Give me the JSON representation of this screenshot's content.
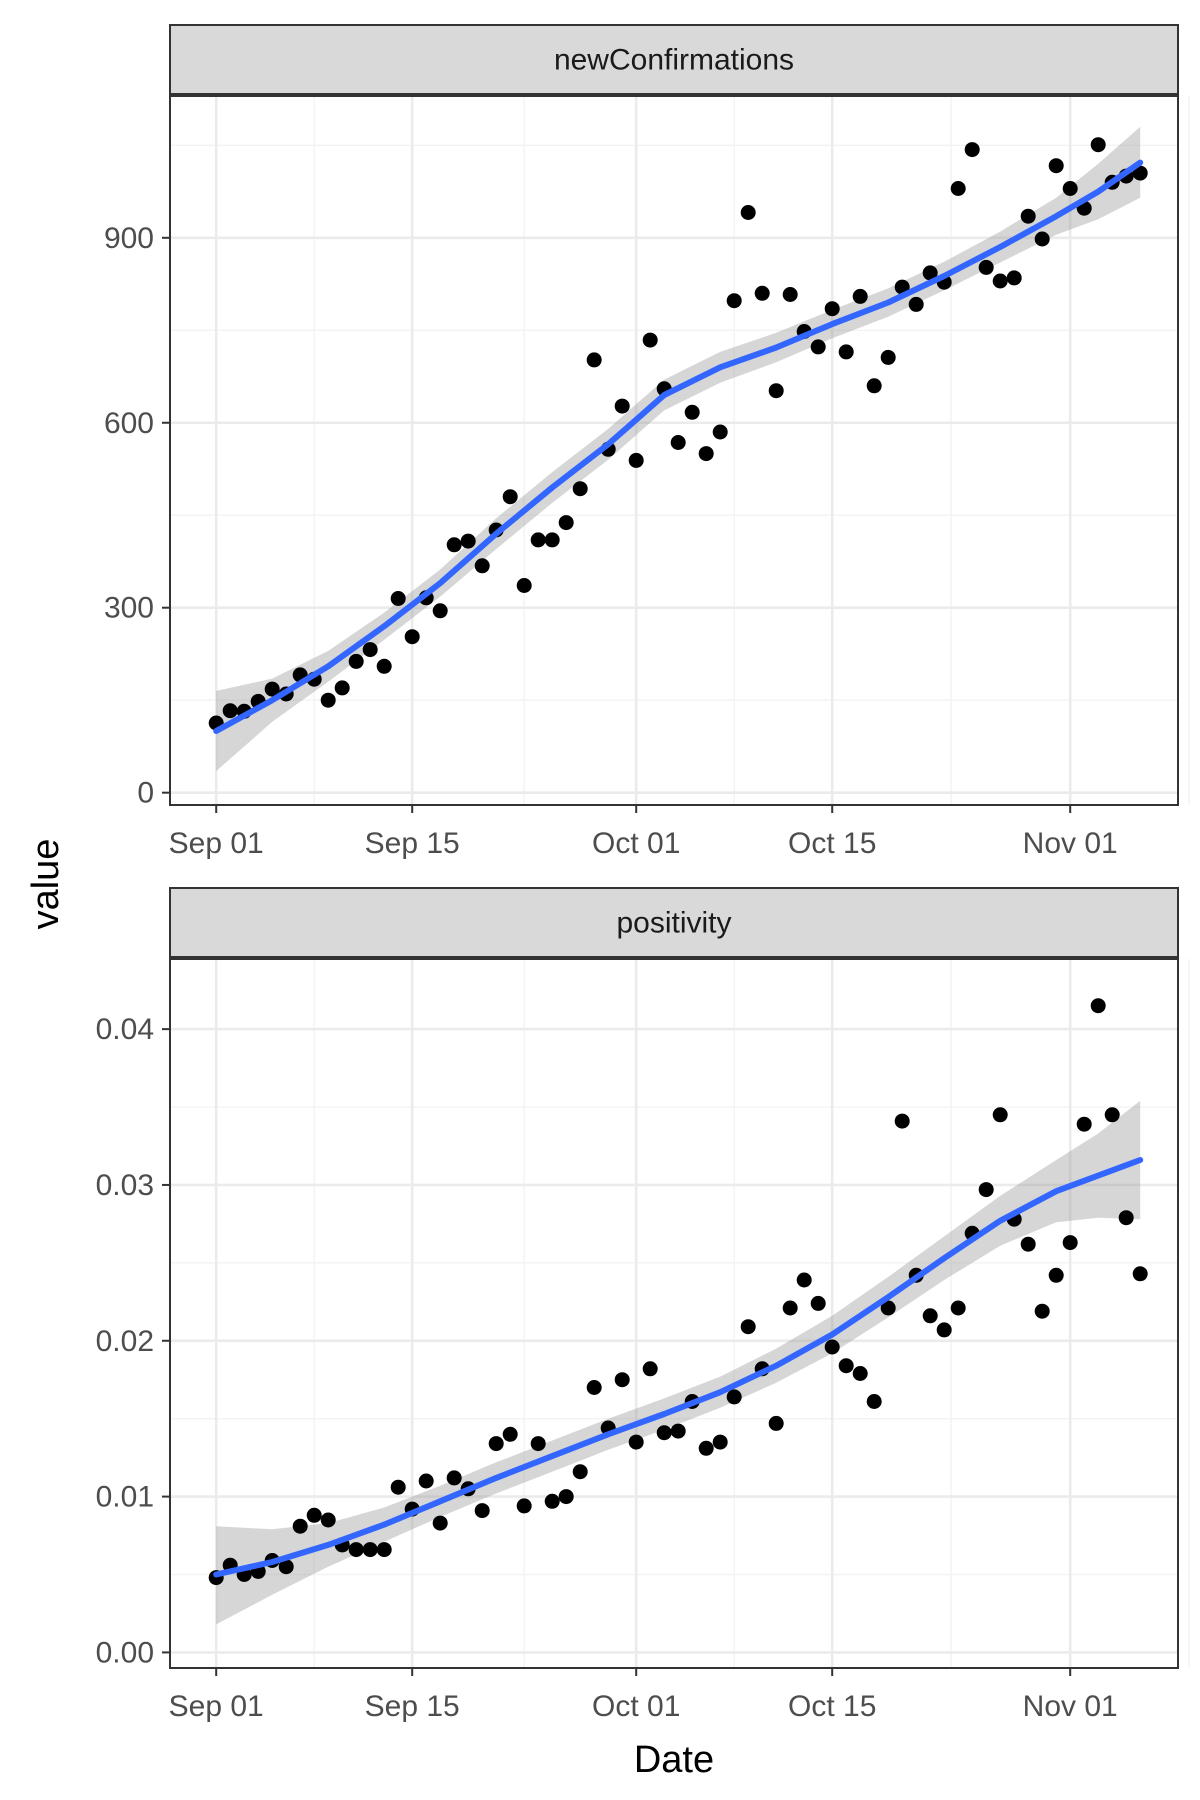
{
  "chart_data": {
    "type": "scatter",
    "xlabel": "Date",
    "ylabel": "value",
    "grid": true,
    "smoother": "loess with confidence band",
    "x_ticks": [
      "Sep 01",
      "Sep 15",
      "Oct 01",
      "Oct 15",
      "Nov 01"
    ],
    "x_tick_dates": [
      "2020-09-01",
      "2020-09-15",
      "2020-10-01",
      "2020-10-15",
      "2020-11-01"
    ],
    "colors": {
      "points": "#000000",
      "smooth": "#3366ff",
      "ribbon": "#999999",
      "strip": "#d9d9d9"
    },
    "panels": [
      {
        "name": "newConfirmations",
        "ylim": [
          -20,
          1130
        ],
        "y_ticks": [
          0,
          300,
          600,
          900
        ],
        "y_tick_labels": [
          "0",
          "300",
          "600",
          "900"
        ],
        "points": [
          [
            "2020-09-01",
            113
          ],
          [
            "2020-09-02",
            133
          ],
          [
            "2020-09-03",
            132
          ],
          [
            "2020-09-04",
            148
          ],
          [
            "2020-09-05",
            168
          ],
          [
            "2020-09-06",
            160
          ],
          [
            "2020-09-07",
            191
          ],
          [
            "2020-09-08",
            184
          ],
          [
            "2020-09-09",
            150
          ],
          [
            "2020-09-10",
            170
          ],
          [
            "2020-09-11",
            213
          ],
          [
            "2020-09-12",
            232
          ],
          [
            "2020-09-13",
            205
          ],
          [
            "2020-09-14",
            315
          ],
          [
            "2020-09-15",
            253
          ],
          [
            "2020-09-16",
            316
          ],
          [
            "2020-09-17",
            295
          ],
          [
            "2020-09-18",
            402
          ],
          [
            "2020-09-19",
            408
          ],
          [
            "2020-09-20",
            368
          ],
          [
            "2020-09-21",
            426
          ],
          [
            "2020-09-22",
            480
          ],
          [
            "2020-09-23",
            336
          ],
          [
            "2020-09-24",
            410
          ],
          [
            "2020-09-25",
            410
          ],
          [
            "2020-09-26",
            438
          ],
          [
            "2020-09-27",
            493
          ],
          [
            "2020-09-28",
            702
          ],
          [
            "2020-09-29",
            557
          ],
          [
            "2020-09-30",
            627
          ],
          [
            "2020-10-01",
            539
          ],
          [
            "2020-10-02",
            734
          ],
          [
            "2020-10-03",
            655
          ],
          [
            "2020-10-04",
            568
          ],
          [
            "2020-10-05",
            617
          ],
          [
            "2020-10-06",
            550
          ],
          [
            "2020-10-07",
            585
          ],
          [
            "2020-10-08",
            798
          ],
          [
            "2020-10-09",
            941
          ],
          [
            "2020-10-10",
            810
          ],
          [
            "2020-10-11",
            652
          ],
          [
            "2020-10-12",
            808
          ],
          [
            "2020-10-13",
            748
          ],
          [
            "2020-10-14",
            723
          ],
          [
            "2020-10-15",
            785
          ],
          [
            "2020-10-16",
            715
          ],
          [
            "2020-10-17",
            805
          ],
          [
            "2020-10-18",
            660
          ],
          [
            "2020-10-19",
            706
          ],
          [
            "2020-10-20",
            820
          ],
          [
            "2020-10-21",
            792
          ],
          [
            "2020-10-22",
            843
          ],
          [
            "2020-10-23",
            828
          ],
          [
            "2020-10-24",
            980
          ],
          [
            "2020-10-25",
            1043
          ],
          [
            "2020-10-26",
            852
          ],
          [
            "2020-10-27",
            830
          ],
          [
            "2020-10-28",
            835
          ],
          [
            "2020-10-29",
            935
          ],
          [
            "2020-10-30",
            898
          ],
          [
            "2020-10-31",
            1017
          ],
          [
            "2020-11-01",
            980
          ],
          [
            "2020-11-02",
            948
          ],
          [
            "2020-11-03",
            1051
          ],
          [
            "2020-11-04",
            990
          ],
          [
            "2020-11-05",
            1000
          ],
          [
            "2020-11-06",
            1005
          ]
        ],
        "smooth": [
          [
            "2020-09-01",
            100,
            35,
            165
          ],
          [
            "2020-09-05",
            150,
            115,
            185
          ],
          [
            "2020-09-09",
            205,
            180,
            230
          ],
          [
            "2020-09-13",
            270,
            248,
            292
          ],
          [
            "2020-09-17",
            340,
            318,
            362
          ],
          [
            "2020-09-21",
            420,
            395,
            445
          ],
          [
            "2020-09-25",
            495,
            470,
            520
          ],
          [
            "2020-09-29",
            565,
            540,
            590
          ],
          [
            "2020-10-03",
            645,
            620,
            670
          ],
          [
            "2020-10-07",
            690,
            665,
            715
          ],
          [
            "2020-10-11",
            722,
            698,
            746
          ],
          [
            "2020-10-15",
            760,
            737,
            783
          ],
          [
            "2020-10-19",
            795,
            772,
            818
          ],
          [
            "2020-10-23",
            838,
            815,
            861
          ],
          [
            "2020-10-27",
            885,
            860,
            910
          ],
          [
            "2020-10-31",
            935,
            905,
            965
          ],
          [
            "2020-11-03",
            975,
            930,
            1020
          ],
          [
            "2020-11-06",
            1022,
            965,
            1080
          ]
        ]
      },
      {
        "name": "positivity",
        "ylim": [
          -0.001,
          0.0445
        ],
        "y_ticks": [
          0,
          0.01,
          0.02,
          0.03,
          0.04
        ],
        "y_tick_labels": [
          "0.00",
          "0.01",
          "0.02",
          "0.03",
          "0.04"
        ],
        "points": [
          [
            "2020-09-01",
            0.0048
          ],
          [
            "2020-09-02",
            0.0056
          ],
          [
            "2020-09-03",
            0.005
          ],
          [
            "2020-09-04",
            0.0052
          ],
          [
            "2020-09-05",
            0.0059
          ],
          [
            "2020-09-06",
            0.0055
          ],
          [
            "2020-09-07",
            0.0081
          ],
          [
            "2020-09-08",
            0.0088
          ],
          [
            "2020-09-09",
            0.0085
          ],
          [
            "2020-09-10",
            0.0069
          ],
          [
            "2020-09-11",
            0.0066
          ],
          [
            "2020-09-12",
            0.0066
          ],
          [
            "2020-09-13",
            0.0066
          ],
          [
            "2020-09-14",
            0.0106
          ],
          [
            "2020-09-15",
            0.0092
          ],
          [
            "2020-09-16",
            0.011
          ],
          [
            "2020-09-17",
            0.0083
          ],
          [
            "2020-09-18",
            0.0112
          ],
          [
            "2020-09-19",
            0.0105
          ],
          [
            "2020-09-20",
            0.0091
          ],
          [
            "2020-09-21",
            0.0134
          ],
          [
            "2020-09-22",
            0.014
          ],
          [
            "2020-09-23",
            0.0094
          ],
          [
            "2020-09-24",
            0.0134
          ],
          [
            "2020-09-25",
            0.0097
          ],
          [
            "2020-09-26",
            0.01
          ],
          [
            "2020-09-27",
            0.0116
          ],
          [
            "2020-09-28",
            0.017
          ],
          [
            "2020-09-29",
            0.0144
          ],
          [
            "2020-09-30",
            0.0175
          ],
          [
            "2020-10-01",
            0.0135
          ],
          [
            "2020-10-02",
            0.0182
          ],
          [
            "2020-10-03",
            0.0141
          ],
          [
            "2020-10-04",
            0.0142
          ],
          [
            "2020-10-05",
            0.0161
          ],
          [
            "2020-10-06",
            0.0131
          ],
          [
            "2020-10-07",
            0.0135
          ],
          [
            "2020-10-08",
            0.0164
          ],
          [
            "2020-10-09",
            0.0209
          ],
          [
            "2020-10-10",
            0.0182
          ],
          [
            "2020-10-11",
            0.0147
          ],
          [
            "2020-10-12",
            0.0221
          ],
          [
            "2020-10-13",
            0.0239
          ],
          [
            "2020-10-14",
            0.0224
          ],
          [
            "2020-10-15",
            0.0196
          ],
          [
            "2020-10-16",
            0.0184
          ],
          [
            "2020-10-17",
            0.0179
          ],
          [
            "2020-10-18",
            0.0161
          ],
          [
            "2020-10-19",
            0.0221
          ],
          [
            "2020-10-20",
            0.0341
          ],
          [
            "2020-10-21",
            0.0242
          ],
          [
            "2020-10-22",
            0.0216
          ],
          [
            "2020-10-23",
            0.0207
          ],
          [
            "2020-10-24",
            0.0221
          ],
          [
            "2020-10-25",
            0.0269
          ],
          [
            "2020-10-26",
            0.0297
          ],
          [
            "2020-10-27",
            0.0345
          ],
          [
            "2020-10-28",
            0.0278
          ],
          [
            "2020-10-29",
            0.0262
          ],
          [
            "2020-10-30",
            0.0219
          ],
          [
            "2020-10-31",
            0.0242
          ],
          [
            "2020-11-01",
            0.0263
          ],
          [
            "2020-11-02",
            0.0339
          ],
          [
            "2020-11-03",
            0.0415
          ],
          [
            "2020-11-04",
            0.0345
          ],
          [
            "2020-11-05",
            0.0279
          ],
          [
            "2020-11-06",
            0.0243
          ]
        ],
        "smooth": [
          [
            "2020-09-01",
            0.005,
            0.0018,
            0.0081
          ],
          [
            "2020-09-05",
            0.0058,
            0.0037,
            0.0079
          ],
          [
            "2020-09-09",
            0.0069,
            0.0055,
            0.0083
          ],
          [
            "2020-09-13",
            0.0082,
            0.0071,
            0.0093
          ],
          [
            "2020-09-17",
            0.0097,
            0.0087,
            0.0107
          ],
          [
            "2020-09-21",
            0.0112,
            0.0102,
            0.0122
          ],
          [
            "2020-09-25",
            0.0126,
            0.0116,
            0.0136
          ],
          [
            "2020-09-29",
            0.014,
            0.013,
            0.015
          ],
          [
            "2020-10-03",
            0.0153,
            0.0143,
            0.0163
          ],
          [
            "2020-10-07",
            0.0167,
            0.0157,
            0.0177
          ],
          [
            "2020-10-11",
            0.0184,
            0.0173,
            0.0195
          ],
          [
            "2020-10-15",
            0.0204,
            0.0192,
            0.0216
          ],
          [
            "2020-10-19",
            0.0228,
            0.0215,
            0.0241
          ],
          [
            "2020-10-23",
            0.0253,
            0.0239,
            0.0267
          ],
          [
            "2020-10-27",
            0.0277,
            0.0261,
            0.0293
          ],
          [
            "2020-10-31",
            0.0296,
            0.0276,
            0.0316
          ],
          [
            "2020-11-03",
            0.0306,
            0.0279,
            0.0333
          ],
          [
            "2020-11-06",
            0.0316,
            0.0278,
            0.0354
          ]
        ]
      }
    ]
  }
}
